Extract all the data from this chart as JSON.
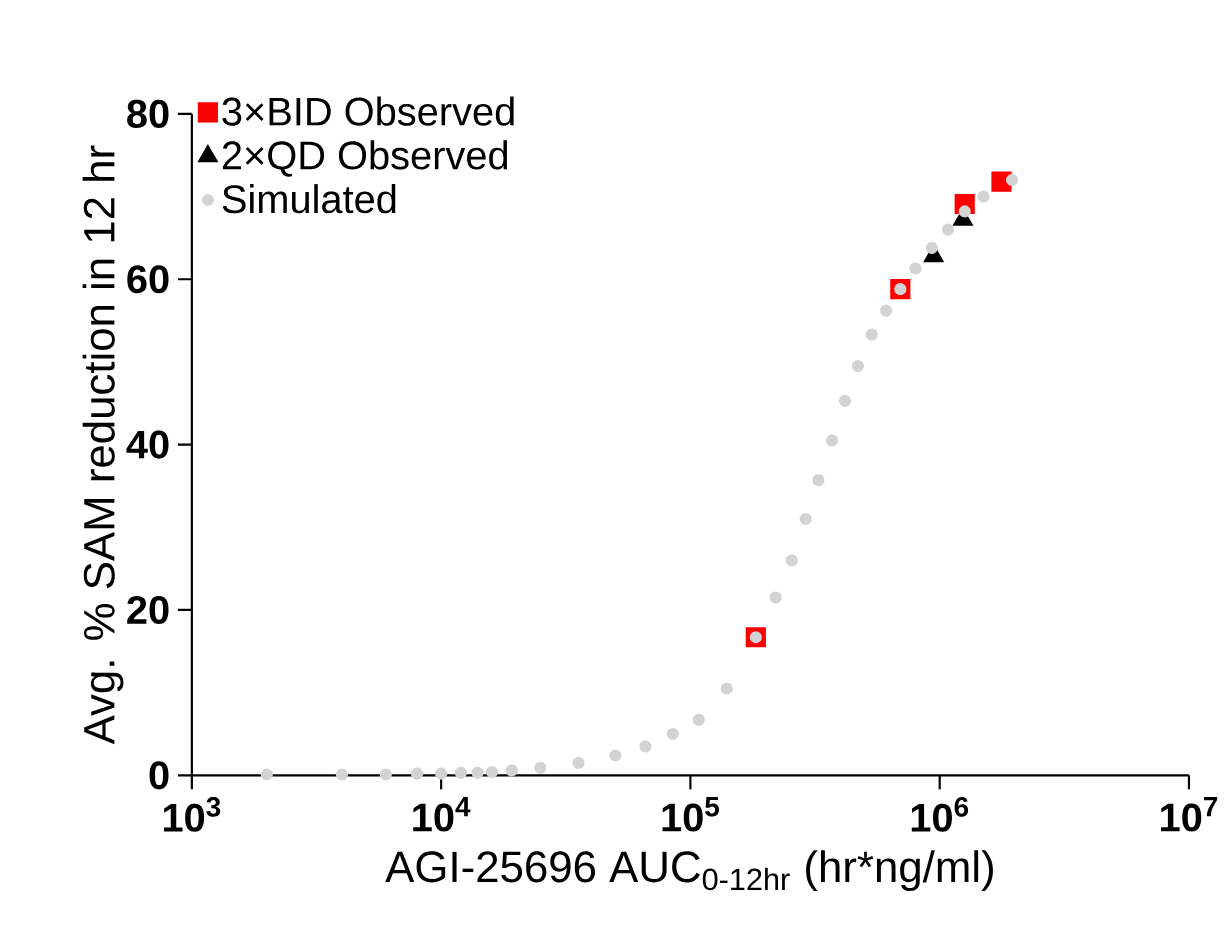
{
  "chart_data": {
    "type": "scatter",
    "xlabel": "AGI-25696 AUC$_{0-12hr}$ (hr*ng/ml)",
    "ylabel": "Avg. % SAM reduction in  12 hr",
    "log": "x",
    "xlim": [
      1000,
      10000000
    ],
    "ylim": [
      0,
      80
    ],
    "xticks": [
      {
        "value": 1000,
        "label": "10$^{3}$"
      },
      {
        "value": 10000,
        "label": "10$^{4}$"
      },
      {
        "value": 100000,
        "label": "10$^{5}$"
      },
      {
        "value": 1000000,
        "label": "10$^{6}$"
      },
      {
        "value": 10000000,
        "label": "10$^{7}$"
      }
    ],
    "yticks": [
      0,
      20,
      40,
      60,
      80
    ],
    "grid": false,
    "legend": "top left",
    "series": [
      {
        "name": "3×BID Observed",
        "color": "#ff0000",
        "marker": "square",
        "x": [
          183000,
          695000,
          1260000,
          1770000
        ],
        "values": [
          16.7,
          58.8,
          69.1,
          71.8
        ]
      },
      {
        "name": "2×QD Observed",
        "color": "#000000",
        "marker": "triangle",
        "x": [
          946000,
          1240000
        ],
        "values": [
          62.8,
          67.2
        ]
      },
      {
        "name": "Simulated",
        "color": "#d3d3d3",
        "marker": "circle",
        "x": [
          2000,
          4000,
          6000,
          8000,
          10000,
          12000,
          14000,
          16000,
          19200,
          25000,
          35600,
          50000,
          66000,
          85000,
          108000,
          140000,
          183000,
          220000,
          255000,
          290000,
          326000,
          370000,
          417000,
          470000,
          534000,
          610000,
          695000,
          800000,
          930000,
          1080000,
          1260000,
          1500000,
          1950000
        ],
        "values": [
          0.1,
          0.1,
          0.1,
          0.2,
          0.2,
          0.3,
          0.3,
          0.4,
          0.6,
          0.9,
          1.5,
          2.4,
          3.5,
          5,
          6.7,
          10.5,
          16.7,
          21.5,
          26,
          31,
          35.7,
          40.5,
          45.3,
          49.5,
          53.3,
          56.2,
          58.8,
          61.3,
          63.8,
          66,
          68.2,
          70,
          72
        ]
      }
    ]
  }
}
